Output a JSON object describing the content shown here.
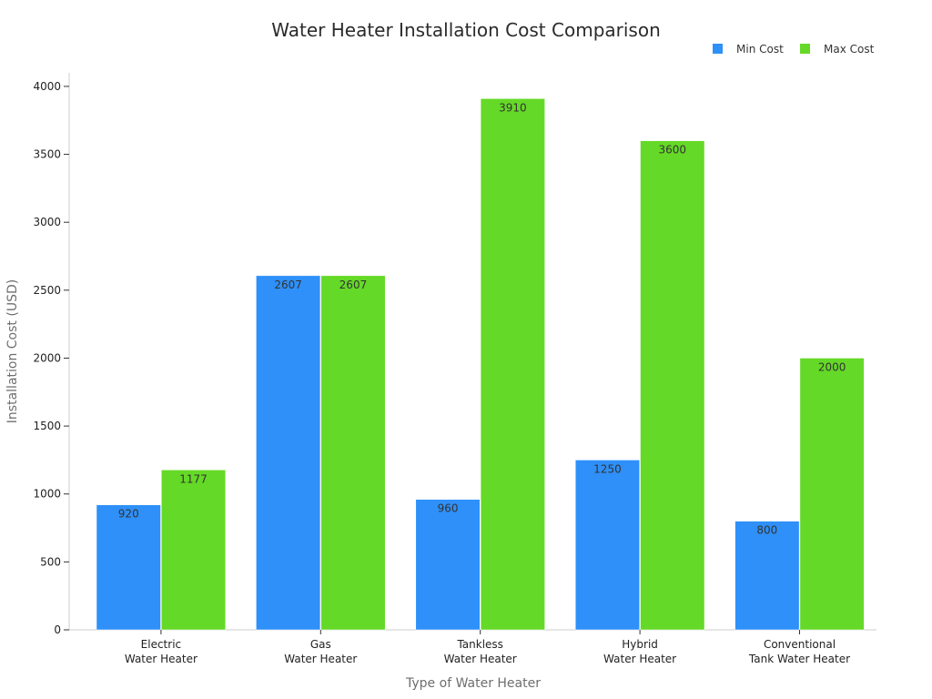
{
  "chart_data": {
    "type": "bar",
    "title": "Water Heater Installation Cost Comparison",
    "xlabel": "Type of Water Heater",
    "ylabel": "Installation Cost (USD)",
    "categories": [
      [
        "Electric",
        "Water Heater"
      ],
      [
        "Gas",
        "Water Heater"
      ],
      [
        "Tankless",
        "Water Heater"
      ],
      [
        "Hybrid",
        "Water Heater"
      ],
      [
        "Conventional",
        "Tank Water Heater"
      ]
    ],
    "series": [
      {
        "name": "Min Cost",
        "color": "#2e90f8",
        "values": [
          920,
          2607,
          960,
          1250,
          800
        ]
      },
      {
        "name": "Max Cost",
        "color": "#65d927",
        "values": [
          1177,
          2607,
          3910,
          3600,
          2000
        ]
      }
    ],
    "ylim": [
      0,
      4100
    ],
    "yticks": [
      0,
      500,
      1000,
      1500,
      2000,
      2500,
      3000,
      3500,
      4000
    ],
    "grid": false,
    "legend_position": "top-right"
  }
}
